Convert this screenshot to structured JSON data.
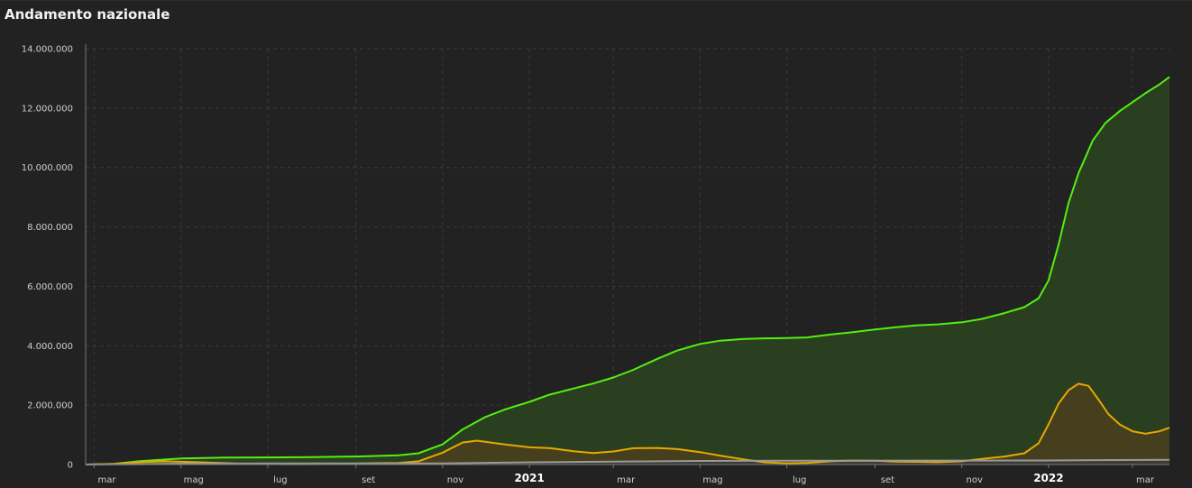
{
  "panel": {
    "title": "Andamento nazionale"
  },
  "chart_data": {
    "type": "area",
    "title": "Andamento nazionale",
    "xlabel": "",
    "ylabel": "",
    "x_start": "2020-02-24",
    "x_end": "2022-03-27",
    "ylim": [
      0,
      14000000
    ],
    "yticks": [
      0,
      2000000,
      4000000,
      6000000,
      8000000,
      10000000,
      12000000,
      14000000
    ],
    "ytick_labels": [
      "0",
      "2.000.000",
      "4.000.000",
      "6.000.000",
      "8.000.000",
      "10.000.000",
      "12.000.000",
      "14.000.000"
    ],
    "xticks": [
      {
        "date": "2020-03-01",
        "label": "mar",
        "year": false
      },
      {
        "date": "2020-05-01",
        "label": "mag",
        "year": false
      },
      {
        "date": "2020-07-01",
        "label": "lug",
        "year": false
      },
      {
        "date": "2020-09-01",
        "label": "set",
        "year": false
      },
      {
        "date": "2020-11-01",
        "label": "nov",
        "year": false
      },
      {
        "date": "2021-01-01",
        "label": "2021",
        "year": true
      },
      {
        "date": "2021-03-01",
        "label": "mar",
        "year": false
      },
      {
        "date": "2021-05-01",
        "label": "mag",
        "year": false
      },
      {
        "date": "2021-07-01",
        "label": "lug",
        "year": false
      },
      {
        "date": "2021-09-01",
        "label": "set",
        "year": false
      },
      {
        "date": "2021-11-01",
        "label": "nov",
        "year": false
      },
      {
        "date": "2022-01-01",
        "label": "2022",
        "year": true
      },
      {
        "date": "2022-03-01",
        "label": "mar",
        "year": false
      }
    ],
    "grid": true,
    "colors": {
      "background": "#222222",
      "grid": "#3a3a3a",
      "axis": "#777777"
    },
    "series": [
      {
        "color": "#55ee11",
        "fill": "#2a3f1f",
        "points": [
          [
            "2020-02-24",
            0
          ],
          [
            "2020-03-15",
            25000
          ],
          [
            "2020-04-01",
            110000
          ],
          [
            "2020-05-01",
            205000
          ],
          [
            "2020-06-01",
            233000
          ],
          [
            "2020-07-01",
            241000
          ],
          [
            "2020-08-01",
            248000
          ],
          [
            "2020-09-01",
            270000
          ],
          [
            "2020-10-01",
            314000
          ],
          [
            "2020-10-15",
            380000
          ],
          [
            "2020-11-01",
            680000
          ],
          [
            "2020-11-15",
            1180000
          ],
          [
            "2020-12-01",
            1600000
          ],
          [
            "2020-12-15",
            1860000
          ],
          [
            "2021-01-01",
            2110000
          ],
          [
            "2021-01-15",
            2350000
          ],
          [
            "2021-02-01",
            2560000
          ],
          [
            "2021-02-15",
            2730000
          ],
          [
            "2021-03-01",
            2930000
          ],
          [
            "2021-03-15",
            3190000
          ],
          [
            "2021-04-01",
            3560000
          ],
          [
            "2021-04-15",
            3840000
          ],
          [
            "2021-05-01",
            4060000
          ],
          [
            "2021-05-15",
            4170000
          ],
          [
            "2021-06-01",
            4230000
          ],
          [
            "2021-06-15",
            4250000
          ],
          [
            "2021-07-01",
            4260000
          ],
          [
            "2021-07-15",
            4280000
          ],
          [
            "2021-08-01",
            4380000
          ],
          [
            "2021-08-15",
            4450000
          ],
          [
            "2021-09-01",
            4550000
          ],
          [
            "2021-09-15",
            4620000
          ],
          [
            "2021-10-01",
            4690000
          ],
          [
            "2021-10-15",
            4720000
          ],
          [
            "2021-11-01",
            4790000
          ],
          [
            "2021-11-15",
            4900000
          ],
          [
            "2021-12-01",
            5100000
          ],
          [
            "2021-12-15",
            5300000
          ],
          [
            "2021-12-25",
            5600000
          ],
          [
            "2022-01-01",
            6200000
          ],
          [
            "2022-01-08",
            7400000
          ],
          [
            "2022-01-15",
            8800000
          ],
          [
            "2022-01-22",
            9800000
          ],
          [
            "2022-02-01",
            10900000
          ],
          [
            "2022-02-10",
            11500000
          ],
          [
            "2022-02-20",
            11900000
          ],
          [
            "2022-03-01",
            12200000
          ],
          [
            "2022-03-10",
            12500000
          ],
          [
            "2022-03-20",
            12800000
          ],
          [
            "2022-03-27",
            13050000
          ]
        ]
      },
      {
        "color": "#e8a800",
        "fill": "#4a3f1f",
        "points": [
          [
            "2020-02-24",
            0
          ],
          [
            "2020-03-15",
            20000
          ],
          [
            "2020-04-01",
            80000
          ],
          [
            "2020-04-20",
            108000
          ],
          [
            "2020-05-15",
            75000
          ],
          [
            "2020-06-15",
            22000
          ],
          [
            "2020-07-15",
            12000
          ],
          [
            "2020-08-15",
            15000
          ],
          [
            "2020-09-15",
            45000
          ],
          [
            "2020-10-01",
            56000
          ],
          [
            "2020-10-15",
            110000
          ],
          [
            "2020-11-01",
            400000
          ],
          [
            "2020-11-15",
            740000
          ],
          [
            "2020-11-25",
            805000
          ],
          [
            "2020-12-15",
            675000
          ],
          [
            "2021-01-01",
            580000
          ],
          [
            "2021-01-15",
            555000
          ],
          [
            "2021-02-01",
            450000
          ],
          [
            "2021-02-15",
            390000
          ],
          [
            "2021-03-01",
            440000
          ],
          [
            "2021-03-15",
            550000
          ],
          [
            "2021-04-01",
            560000
          ],
          [
            "2021-04-15",
            520000
          ],
          [
            "2021-05-01",
            420000
          ],
          [
            "2021-05-15",
            300000
          ],
          [
            "2021-06-01",
            170000
          ],
          [
            "2021-06-15",
            75000
          ],
          [
            "2021-07-01",
            42000
          ],
          [
            "2021-07-15",
            55000
          ],
          [
            "2021-08-01",
            110000
          ],
          [
            "2021-08-15",
            135000
          ],
          [
            "2021-09-01",
            130000
          ],
          [
            "2021-09-15",
            100000
          ],
          [
            "2021-10-01",
            90000
          ],
          [
            "2021-10-15",
            80000
          ],
          [
            "2021-11-01",
            110000
          ],
          [
            "2021-11-15",
            190000
          ],
          [
            "2021-12-01",
            270000
          ],
          [
            "2021-12-15",
            380000
          ],
          [
            "2021-12-25",
            720000
          ],
          [
            "2022-01-01",
            1350000
          ],
          [
            "2022-01-08",
            2050000
          ],
          [
            "2022-01-15",
            2500000
          ],
          [
            "2022-01-22",
            2720000
          ],
          [
            "2022-01-29",
            2650000
          ],
          [
            "2022-02-05",
            2200000
          ],
          [
            "2022-02-12",
            1700000
          ],
          [
            "2022-02-20",
            1350000
          ],
          [
            "2022-03-01",
            1120000
          ],
          [
            "2022-03-10",
            1040000
          ],
          [
            "2022-03-20",
            1120000
          ],
          [
            "2022-03-27",
            1240000
          ]
        ]
      },
      {
        "color": "#999999",
        "fill": "#3a3a3a",
        "points": [
          [
            "2020-02-24",
            0
          ],
          [
            "2020-04-01",
            13000
          ],
          [
            "2020-05-01",
            29000
          ],
          [
            "2020-07-01",
            35000
          ],
          [
            "2020-09-01",
            35500
          ],
          [
            "2020-11-01",
            40000
          ],
          [
            "2020-12-01",
            57000
          ],
          [
            "2021-01-01",
            75000
          ],
          [
            "2021-03-01",
            100000
          ],
          [
            "2021-05-01",
            122000
          ],
          [
            "2021-07-01",
            127000
          ],
          [
            "2021-09-01",
            130000
          ],
          [
            "2021-11-01",
            133000
          ],
          [
            "2022-01-01",
            138000
          ],
          [
            "2022-02-01",
            148000
          ],
          [
            "2022-03-27",
            158000
          ]
        ]
      }
    ]
  }
}
